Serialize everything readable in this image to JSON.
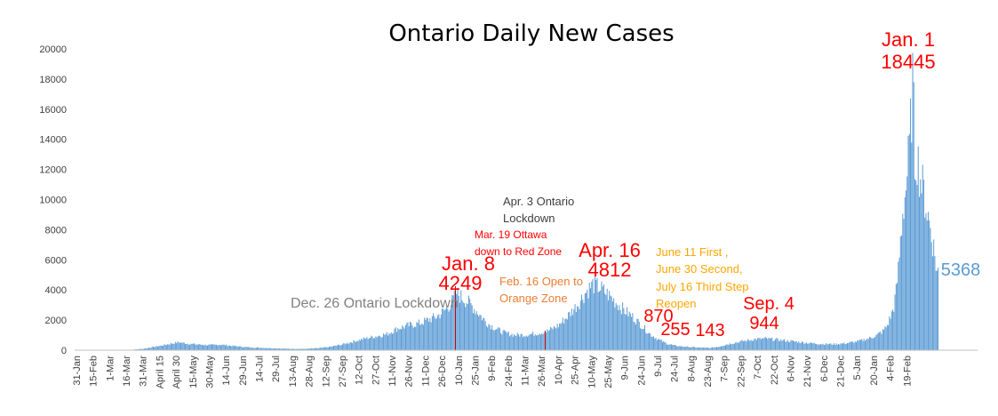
{
  "chart_data": {
    "type": "bar",
    "title": "Ontario Daily New Cases",
    "xlabel": "",
    "ylabel": "",
    "ylim": [
      0,
      20000
    ],
    "yticks": [
      0,
      2000,
      4000,
      6000,
      8000,
      10000,
      12000,
      14000,
      16000,
      18000,
      20000
    ],
    "grid": false,
    "legend": "none",
    "bar_color": "#5b9bd5",
    "highlight_color": "#c00000",
    "x_tick_labels": [
      "31-Jan",
      "15-Feb",
      "1-Mar",
      "16-Mar",
      "31-Mar",
      "April 15",
      "April 30",
      "15-May",
      "30-May",
      "14-Jun",
      "29-Jun",
      "14-Jul",
      "29-Jul",
      "13-Aug",
      "28-Aug",
      "12-Sep",
      "27-Sep",
      "12-Oct",
      "27-Oct",
      "11-Nov",
      "26-Nov",
      "11-Dec",
      "26-Dec",
      "10-Jan",
      "25-Jan",
      "9-Feb",
      "24-Feb",
      "11-Mar",
      "26-Mar",
      "10-Apr",
      "25-Apr",
      "10-May",
      "25-May",
      "9-Jun",
      "24-Jun",
      "9-Jul",
      "24-Jul",
      "8-Aug",
      "23-Aug",
      "7-Sep",
      "22-Sep",
      "7-Oct",
      "22-Oct",
      "6-Nov",
      "21-Nov",
      "6-Dec",
      "21-Dec",
      "5-Jan",
      "20-Jan",
      "4-Feb",
      "19-Feb"
    ],
    "control_points": [
      [
        0,
        0
      ],
      [
        45,
        0
      ],
      [
        60,
        100
      ],
      [
        75,
        300
      ],
      [
        85,
        450
      ],
      [
        92,
        550
      ],
      [
        100,
        450
      ],
      [
        108,
        400
      ],
      [
        120,
        350
      ],
      [
        130,
        380
      ],
      [
        140,
        300
      ],
      [
        155,
        200
      ],
      [
        170,
        160
      ],
      [
        190,
        100
      ],
      [
        205,
        90
      ],
      [
        220,
        150
      ],
      [
        230,
        250
      ],
      [
        240,
        400
      ],
      [
        250,
        600
      ],
      [
        260,
        800
      ],
      [
        270,
        950
      ],
      [
        280,
        1100
      ],
      [
        290,
        1500
      ],
      [
        300,
        1700
      ],
      [
        310,
        1850
      ],
      [
        318,
        2100
      ],
      [
        325,
        2300
      ],
      [
        332,
        2700
      ],
      [
        338,
        3200
      ],
      [
        343,
        3900
      ],
      [
        348,
        3600
      ],
      [
        355,
        3200
      ],
      [
        362,
        2600
      ],
      [
        370,
        1900
      ],
      [
        378,
        1500
      ],
      [
        386,
        1200
      ],
      [
        395,
        1050
      ],
      [
        405,
        1050
      ],
      [
        415,
        1150
      ],
      [
        425,
        1300
      ],
      [
        435,
        1700
      ],
      [
        443,
        2300
      ],
      [
        452,
        3100
      ],
      [
        460,
        4000
      ],
      [
        466,
        4500
      ],
      [
        472,
        4300
      ],
      [
        480,
        3800
      ],
      [
        488,
        3200
      ],
      [
        495,
        2700
      ],
      [
        502,
        2300
      ],
      [
        510,
        1700
      ],
      [
        518,
        1100
      ],
      [
        525,
        750
      ],
      [
        533,
        450
      ],
      [
        541,
        300
      ],
      [
        552,
        230
      ],
      [
        562,
        180
      ],
      [
        572,
        160
      ],
      [
        580,
        250
      ],
      [
        590,
        450
      ],
      [
        600,
        600
      ],
      [
        612,
        750
      ],
      [
        622,
        800
      ],
      [
        635,
        700
      ],
      [
        648,
        600
      ],
      [
        660,
        500
      ],
      [
        672,
        430
      ],
      [
        685,
        420
      ],
      [
        695,
        480
      ],
      [
        705,
        600
      ],
      [
        715,
        800
      ],
      [
        722,
        1000
      ],
      [
        728,
        1300
      ],
      [
        732,
        1700
      ],
      [
        736,
        2500
      ],
      [
        738,
        3000
      ],
      [
        740,
        4000
      ],
      [
        742,
        5500
      ],
      [
        744,
        7500
      ],
      [
        746,
        9500
      ],
      [
        748,
        10500
      ],
      [
        750,
        12000
      ],
      [
        752,
        13800
      ],
      [
        754,
        16600
      ],
      [
        755,
        18445
      ],
      [
        756,
        16000
      ],
      [
        757,
        13000
      ],
      [
        759,
        13300
      ],
      [
        762,
        11800
      ],
      [
        765,
        10800
      ],
      [
        768,
        9500
      ],
      [
        771,
        8400
      ],
      [
        774,
        7000
      ],
      [
        777,
        5368
      ],
      [
        778,
        5368
      ],
      [
        779,
        0
      ],
      [
        820,
        0
      ]
    ],
    "highlights": [
      {
        "x": 342,
        "value": 4249
      },
      {
        "x": 423,
        "value": 1300
      }
    ],
    "annotations": [
      {
        "text": "Jan. 1",
        "color": "#ff0000",
        "size": 22
      },
      {
        "text": "18445",
        "color": "#ff0000",
        "size": 22
      },
      {
        "text": "Apr. 3 Ontario",
        "color": "#404040",
        "size": 13
      },
      {
        "text": "Lockdown",
        "color": "#404040",
        "size": 13
      },
      {
        "text": "Mar. 19 Ottawa",
        "color": "#ff0000",
        "size": 12
      },
      {
        "text": "down to Red Zone",
        "color": "#ff0000",
        "size": 12
      },
      {
        "text": "Apr. 16",
        "color": "#ff0000",
        "size": 22
      },
      {
        "text": "4812",
        "color": "#ff0000",
        "size": 22
      },
      {
        "text": "June 11 First ,",
        "color": "#ffa500",
        "size": 13
      },
      {
        "text": "June 30 Second,",
        "color": "#ffa500",
        "size": 13
      },
      {
        "text": "July 16 Third Step",
        "color": "#ffa500",
        "size": 13
      },
      {
        "text": "Reopen",
        "color": "#ffa500",
        "size": 13
      },
      {
        "text": "Jan. 8",
        "color": "#ff0000",
        "size": 22
      },
      {
        "text": "4249",
        "color": "#ff0000",
        "size": 22
      },
      {
        "text": "Feb. 16 Open to",
        "color": "#ed7d31",
        "size": 13
      },
      {
        "text": "Orange Zone",
        "color": "#ed7d31",
        "size": 13
      },
      {
        "text": "Dec. 26 Ontario Lockdown",
        "color": "#808080",
        "size": 16
      },
      {
        "text": "Sep. 4",
        "color": "#ff0000",
        "size": 20
      },
      {
        "text": "944",
        "color": "#ff0000",
        "size": 20
      },
      {
        "text": "870",
        "color": "#ff0000",
        "size": 20
      },
      {
        "text": "255",
        "color": "#ff0000",
        "size": 20
      },
      {
        "text": "143",
        "color": "#ff0000",
        "size": 20
      },
      {
        "text": "5368",
        "color": "#5b9bd5",
        "size": 20
      }
    ]
  }
}
